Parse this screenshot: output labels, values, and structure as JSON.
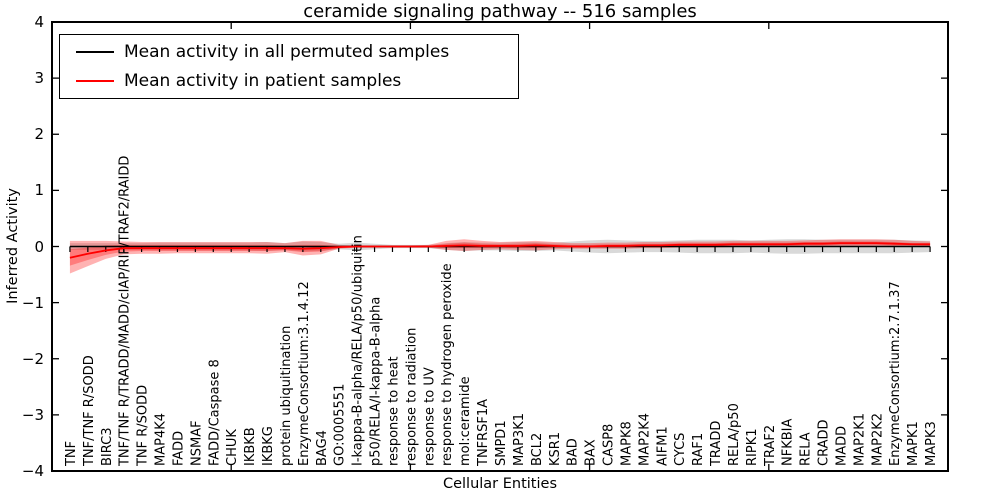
{
  "figure": {
    "title": "ceramide signaling pathway -- 516 samples",
    "xlabel": "Cellular Entities",
    "ylabel": "Inferred Activity"
  },
  "chart_data": {
    "type": "line",
    "title": "ceramide signaling pathway -- 516 samples",
    "xlabel": "Cellular Entities",
    "ylabel": "Inferred Activity",
    "ylim": [
      -4,
      4
    ],
    "x_range": [
      0,
      50
    ],
    "grid": false,
    "legend_position": "upper left",
    "ytick_values": [
      4,
      3,
      2,
      1,
      0,
      -1,
      -2,
      -3,
      -4
    ],
    "ytick_labels": [
      "4",
      "3",
      "2",
      "1",
      "0",
      "−1",
      "−2",
      "−3",
      "−4"
    ],
    "xtick_values": [
      10,
      20,
      30,
      40,
      50
    ],
    "categories": [
      "TNF",
      "TNF/TNF R/SODD",
      "BIRC3",
      "TNF/TNF R/TRADD/MADD/cIAP/RIP/TRAF2/RAIDD",
      "TNF R/SODD",
      "MAP4K4",
      "FADD",
      "NSMAF",
      "FADD/Caspase 8",
      "CHUK",
      "IKBKB",
      "IKBKG",
      "protein ubiquitination",
      "EnzymeConsortium:3.1.4.12",
      "BAG4",
      "GO:0005551",
      "I-kappa-B-alpha/RELA/p50/ubiquitin",
      "p50/RELA/I-kappa-B-alpha",
      "response to heat",
      "response to radiation",
      "response to UV",
      "response to hydrogen peroxide",
      "mol:ceramide",
      "TNFRSF1A",
      "SMPD1",
      "MAP3K1",
      "BCL2",
      "KSR1",
      "BAD",
      "BAX",
      "CASP8",
      "MAPK8",
      "MAP2K4",
      "AIFM1",
      "CYCS",
      "RAF1",
      "TRADD",
      "RELA/p50",
      "RIPK1",
      "TRAF2",
      "NFKBIA",
      "RELA",
      "CRADD",
      "MADD",
      "MAP2K1",
      "MAP2K2",
      "EnzymeConsortium:2.7.1.37",
      "MAPK1",
      "MAPK3"
    ],
    "series": [
      {
        "name": "Mean activity in all permuted samples",
        "color": "#000000",
        "marker": "tick-down",
        "values": [
          0,
          0,
          0,
          0,
          0,
          0,
          0,
          0,
          0,
          0,
          0,
          0,
          0,
          0,
          0,
          0,
          0,
          0,
          0,
          0,
          0,
          0,
          0,
          0,
          0,
          0,
          0,
          0,
          0,
          0,
          0,
          0,
          0,
          0,
          0,
          0,
          0,
          0,
          0,
          0,
          0,
          0,
          0,
          0,
          0,
          0,
          0,
          0,
          0
        ],
        "bands": [
          {
            "fill": "#808080",
            "opacity": 0.3,
            "upper": [
              0.06,
              0.06,
              0.06,
              0.06,
              0.06,
              0.07,
              0.07,
              0.07,
              0.07,
              0.07,
              0.07,
              0.08,
              0.06,
              0.09,
              0.08,
              0.05,
              0.07,
              0.05,
              0.03,
              0.03,
              0.03,
              0.06,
              0.08,
              0.07,
              0.07,
              0.08,
              0.08,
              0.07,
              0.09,
              0.11,
              0.12,
              0.11,
              0.1,
              0.1,
              0.11,
              0.12,
              0.12,
              0.12,
              0.11,
              0.12,
              0.13,
              0.13,
              0.12,
              0.12,
              0.12,
              0.12,
              0.12,
              0.11,
              0.1
            ],
            "lower": [
              -0.06,
              -0.06,
              -0.06,
              -0.06,
              -0.06,
              -0.07,
              -0.07,
              -0.07,
              -0.07,
              -0.07,
              -0.07,
              -0.08,
              -0.06,
              -0.09,
              -0.08,
              -0.05,
              -0.07,
              -0.05,
              -0.03,
              -0.03,
              -0.03,
              -0.06,
              -0.08,
              -0.07,
              -0.07,
              -0.08,
              -0.08,
              -0.07,
              -0.09,
              -0.11,
              -0.12,
              -0.11,
              -0.1,
              -0.1,
              -0.11,
              -0.12,
              -0.12,
              -0.12,
              -0.11,
              -0.12,
              -0.13,
              -0.13,
              -0.12,
              -0.12,
              -0.12,
              -0.12,
              -0.12,
              -0.11,
              -0.1
            ]
          }
        ]
      },
      {
        "name": "Mean activity in patient samples",
        "color": "#ff0000",
        "marker": "none",
        "values": [
          -0.2,
          -0.13,
          -0.07,
          -0.03,
          -0.03,
          -0.03,
          -0.03,
          -0.03,
          -0.03,
          -0.03,
          -0.03,
          -0.03,
          -0.03,
          -0.04,
          -0.03,
          -0.01,
          0,
          0,
          0,
          0,
          0,
          0.01,
          0.02,
          0.01,
          0.01,
          0.01,
          0.02,
          0.01,
          0,
          0,
          0.01,
          0.01,
          0.02,
          0.02,
          0.03,
          0.03,
          0.03,
          0.04,
          0.04,
          0.04,
          0.04,
          0.05,
          0.05,
          0.06,
          0.06,
          0.06,
          0.05,
          0.04,
          0.04
        ],
        "bands": [
          {
            "fill": "#ff0000",
            "opacity": 0.3,
            "upper": [
              0.1,
              0.1,
              0.1,
              0.09,
              0.08,
              0.08,
              0.08,
              0.08,
              0.08,
              0.08,
              0.08,
              0.08,
              0.06,
              0.1,
              0.1,
              0.03,
              0.02,
              0.02,
              0.02,
              0.02,
              0.03,
              0.1,
              0.13,
              0.1,
              0.08,
              0.09,
              0.1,
              0.08,
              0.06,
              0.06,
              0.07,
              0.07,
              0.08,
              0.08,
              0.09,
              0.09,
              0.09,
              0.1,
              0.1,
              0.1,
              0.1,
              0.11,
              0.12,
              0.13,
              0.13,
              0.13,
              0.12,
              0.1,
              0.09
            ],
            "lower": [
              -0.48,
              -0.35,
              -0.22,
              -0.14,
              -0.13,
              -0.13,
              -0.12,
              -0.12,
              -0.12,
              -0.12,
              -0.12,
              -0.13,
              -0.1,
              -0.16,
              -0.14,
              -0.04,
              -0.02,
              -0.02,
              -0.02,
              -0.02,
              -0.02,
              -0.06,
              -0.08,
              -0.06,
              -0.05,
              -0.06,
              -0.07,
              -0.05,
              -0.04,
              -0.04,
              -0.04,
              -0.04,
              -0.03,
              -0.03,
              -0.02,
              -0.02,
              -0.02,
              -0.01,
              -0.01,
              -0.01,
              -0.01,
              0.0,
              0.0,
              0.0,
              0.01,
              0.01,
              0.0,
              0.0,
              -0.01
            ]
          },
          {
            "fill": "#ff0000",
            "opacity": 0.3,
            "upper": [
              -0.05,
              -0.02,
              0.02,
              0.03,
              0.03,
              0.03,
              0.03,
              0.03,
              0.03,
              0.03,
              0.03,
              0.03,
              0.02,
              0.03,
              0.03,
              0.01,
              0.01,
              0.01,
              0.01,
              0.01,
              0.01,
              0.05,
              0.07,
              0.05,
              0.04,
              0.05,
              0.06,
              0.04,
              0.03,
              0.03,
              0.04,
              0.04,
              0.05,
              0.05,
              0.06,
              0.06,
              0.06,
              0.07,
              0.07,
              0.07,
              0.07,
              0.08,
              0.08,
              0.09,
              0.09,
              0.09,
              0.08,
              0.06,
              0.06
            ],
            "lower": [
              -0.34,
              -0.24,
              -0.15,
              -0.09,
              -0.08,
              -0.08,
              -0.08,
              -0.08,
              -0.08,
              -0.08,
              -0.08,
              -0.08,
              -0.07,
              -0.1,
              -0.09,
              -0.03,
              -0.01,
              -0.01,
              -0.01,
              -0.01,
              -0.01,
              -0.03,
              -0.03,
              -0.03,
              -0.02,
              -0.03,
              -0.03,
              -0.02,
              -0.02,
              -0.02,
              -0.02,
              -0.02,
              -0.01,
              -0.01,
              0.0,
              0.0,
              0.0,
              0.01,
              0.01,
              0.01,
              0.01,
              0.02,
              0.02,
              0.03,
              0.03,
              0.03,
              0.02,
              0.02,
              0.01
            ]
          }
        ]
      }
    ]
  }
}
